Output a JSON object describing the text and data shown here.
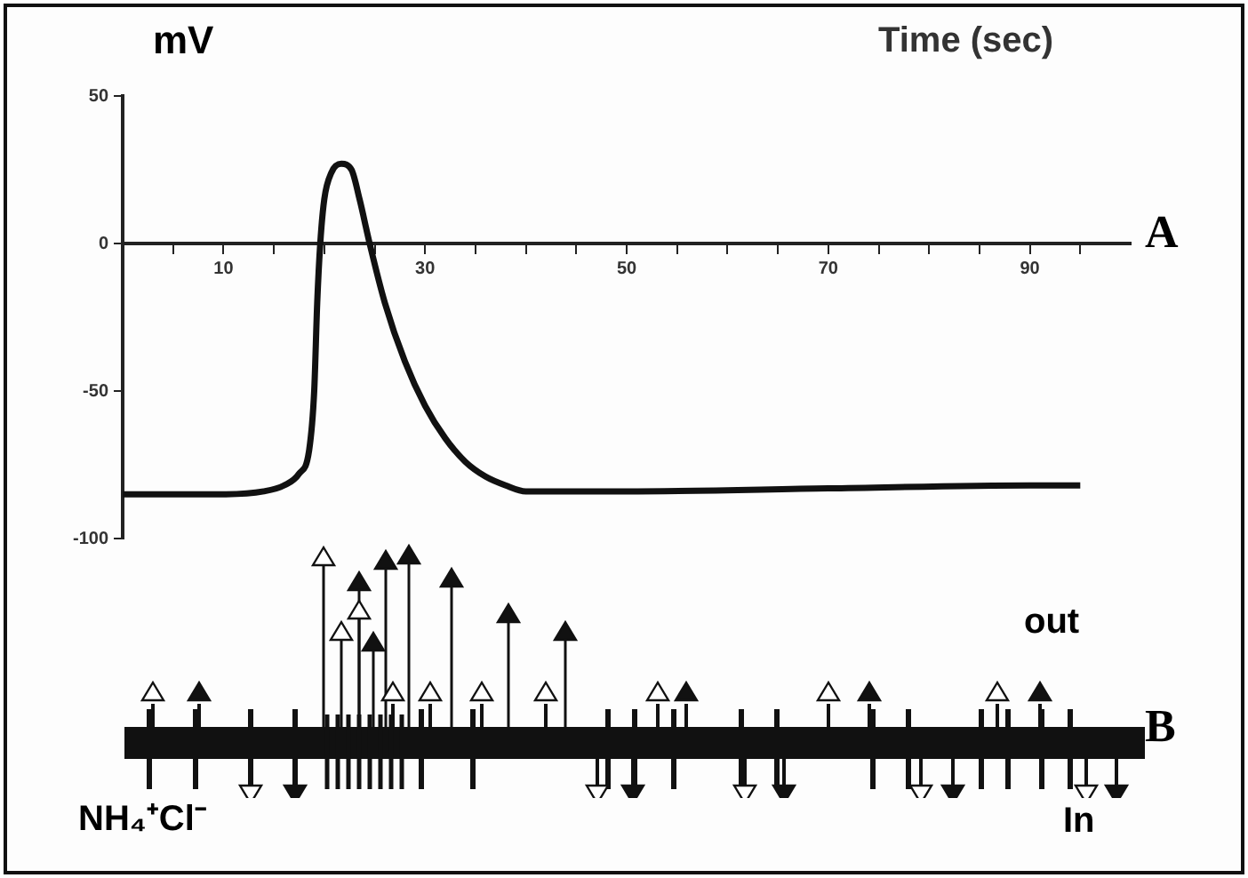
{
  "chart_data": {
    "type": "line",
    "xlabel": "Time (sec)",
    "ylabel": "mV",
    "x": [
      0,
      10,
      14,
      16,
      17.5,
      18.5,
      19,
      19.3,
      19.6,
      20,
      20.7,
      21.7,
      22.7,
      23.5,
      24.5,
      26,
      28,
      30,
      32,
      34,
      36,
      38,
      40,
      50,
      70,
      90,
      95
    ],
    "series": [
      {
        "color": "#111111",
        "values": [
          -85,
          -85,
          -84,
          -82,
          -78,
          -70,
          -50,
          -20,
          0,
          15,
          24,
          27,
          25,
          15,
          0,
          -20,
          -40,
          -55,
          -66,
          -74,
          -79,
          -82,
          -84,
          -84,
          -83,
          -82,
          -82
        ]
      }
    ],
    "xlim": [
      0,
      100
    ],
    "xticks": [
      {
        "value": 5,
        "label": null
      },
      10,
      {
        "value": 15,
        "label": null
      },
      {
        "value": 20,
        "label": null
      },
      {
        "value": 25,
        "label": null
      },
      30,
      {
        "value": 35,
        "label": null
      },
      {
        "value": 40,
        "label": null
      },
      {
        "value": 45,
        "label": null
      },
      50,
      {
        "value": 55,
        "label": null
      },
      {
        "value": 60,
        "label": null
      },
      {
        "value": 65,
        "label": null
      },
      70,
      {
        "value": 75,
        "label": null
      },
      {
        "value": 80,
        "label": null
      },
      {
        "value": 85,
        "label": null
      },
      90,
      {
        "value": 95,
        "label": null
      }
    ],
    "ylim": [
      -100,
      50
    ],
    "yticks": [
      -100,
      -50,
      0,
      50
    ],
    "grid": false,
    "legend": false,
    "marker": "none",
    "line_style": "solid",
    "annotations": [
      "A",
      "B",
      "out",
      "In",
      "NH₄⁺Cl⁻"
    ]
  }
}
